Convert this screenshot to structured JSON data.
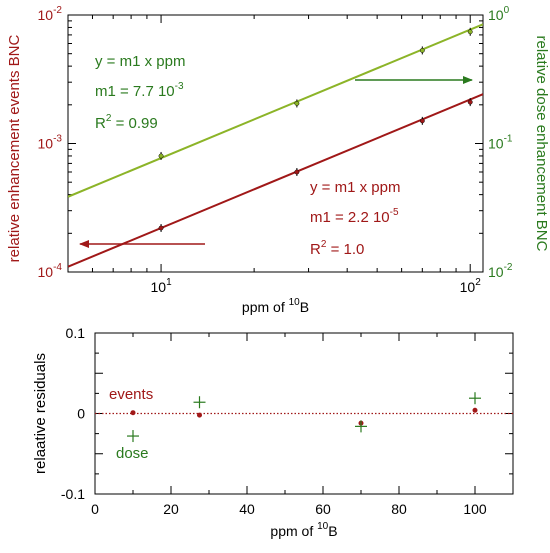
{
  "colors": {
    "events": "#a01818",
    "dose": "#8cb428",
    "dose_text": "#2a7a1e",
    "events_text": "#a01818",
    "axis": "#000000"
  },
  "chart_data": [
    {
      "type": "scatter",
      "scale": "log-log-dual",
      "xlabel": "ppm of 10B",
      "xlabel_main": "ppm of ",
      "xlabel_sup": "10",
      "xlabel_tail": "B",
      "xlim": [
        5,
        110
      ],
      "x_ticks": [
        {
          "value": 10,
          "base": "10",
          "exp": "1"
        },
        {
          "value": 100,
          "base": "10",
          "exp": "2"
        }
      ],
      "ylabel_left": "relative enhancement events BNC",
      "ylim_left": [
        0.0001,
        0.01
      ],
      "y_left_ticks": [
        {
          "value": 0.0001,
          "base": "10",
          "exp": "-4"
        },
        {
          "value": 0.001,
          "base": "10",
          "exp": "-3"
        },
        {
          "value": 0.01,
          "base": "10",
          "exp": "-2"
        }
      ],
      "ylabel_right": "relative dose enhancement BNC",
      "ylim_right": [
        0.01,
        1
      ],
      "y_right_ticks": [
        {
          "value": 0.01,
          "base": "10",
          "exp": "-2"
        },
        {
          "value": 0.1,
          "base": "10",
          "exp": "-1"
        },
        {
          "value": 1,
          "base": "10",
          "exp": "0"
        }
      ],
      "series": [
        {
          "key": "events",
          "axis": "left",
          "fit_slope": 2.2e-05,
          "x": [
            10,
            27.5,
            70,
            100
          ],
          "y": [
            0.00022,
            0.0006,
            0.0015,
            0.0021
          ]
        },
        {
          "key": "dose",
          "axis": "right",
          "fit_slope": 0.0077,
          "x": [
            10,
            27.5,
            70,
            100
          ],
          "y": [
            0.08,
            0.205,
            0.53,
            0.74
          ]
        }
      ],
      "annotations": {
        "dose": {
          "equation": "y = m1 x ppm",
          "m1_prefix": "m1 = 7.7 10",
          "m1_exp": "-3",
          "r2_prefix": "R",
          "r2_sup": "2",
          "r2_value": " = 0.99"
        },
        "events": {
          "equation": "y = m1 x ppm",
          "m1_prefix": "m1 = 2.2 10",
          "m1_exp": "-5",
          "r2_prefix": "R",
          "r2_sup": "2",
          "r2_value": " = 1.0"
        }
      }
    },
    {
      "type": "scatter",
      "xlabel": "ppm of 10B",
      "xlabel_main": "ppm of ",
      "xlabel_sup": "10",
      "xlabel_tail": "B",
      "ylabel": "relaative residuals",
      "xlim": [
        0,
        110
      ],
      "ylim": [
        -0.1,
        0.1
      ],
      "x_ticks": [
        "0",
        "20",
        "40",
        "60",
        "80",
        "100"
      ],
      "y_ticks": [
        "0.1",
        "0",
        "-0.1"
      ],
      "zero_line": true,
      "series": [
        {
          "key": "events",
          "name": "events",
          "marker": "dot",
          "x": [
            10,
            27.5,
            70,
            100
          ],
          "y": [
            0.001,
            -0.002,
            -0.012,
            0.004
          ]
        },
        {
          "key": "dose",
          "name": "dose",
          "marker": "plus",
          "x": [
            10,
            27.5,
            70,
            100
          ],
          "y": [
            -0.028,
            0.014,
            -0.016,
            0.019
          ]
        }
      ]
    }
  ]
}
